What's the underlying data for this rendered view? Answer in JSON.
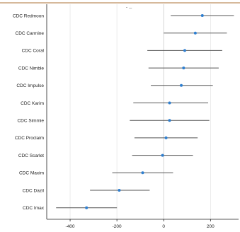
{
  "chart_data": {
    "type": "scatter",
    "subtype": "forest-plot-error-bars",
    "title": "",
    "xlabel": "",
    "ylabel": "",
    "xlim": [
      -500,
      320
    ],
    "x_ticks": [
      -400,
      -200,
      0,
      200
    ],
    "x_tick_labels": [
      "-400",
      "-200",
      "0",
      "200"
    ],
    "grid": true,
    "reference_line_x": 0,
    "categories": [
      "CDC Redmoon",
      "CDC Carmine",
      "CDC Coral",
      "CDC Nimble",
      "CDC Impulse",
      "CDC Karim",
      "CDC Simmie",
      "CDC Proclaim",
      "CDC Scarlet",
      "CDC Maxim",
      "CDC Dazil",
      "CDC Imax"
    ],
    "series": [
      {
        "points": [
          {
            "category": "CDC Redmoon",
            "estimate": 165,
            "low": 30,
            "high": 300
          },
          {
            "category": "CDC Carmine",
            "estimate": 135,
            "low": 0,
            "high": 270
          },
          {
            "category": "CDC Coral",
            "estimate": 90,
            "low": -70,
            "high": 250
          },
          {
            "category": "CDC Nimble",
            "estimate": 85,
            "low": -65,
            "high": 235
          },
          {
            "category": "CDC Impulse",
            "estimate": 75,
            "low": -55,
            "high": 210
          },
          {
            "category": "CDC Karim",
            "estimate": 25,
            "low": -130,
            "high": 190
          },
          {
            "category": "CDC Simmie",
            "estimate": 25,
            "low": -145,
            "high": 195
          },
          {
            "category": "CDC Proclaim",
            "estimate": 10,
            "low": -125,
            "high": 145
          },
          {
            "category": "CDC Scarlet",
            "estimate": -5,
            "low": -135,
            "high": 125
          },
          {
            "category": "CDC Maxim",
            "estimate": -90,
            "low": -220,
            "high": 40
          },
          {
            "category": "CDC Dazil",
            "estimate": -190,
            "low": -315,
            "high": -60
          },
          {
            "category": "CDC Imax",
            "estimate": -330,
            "low": -460,
            "high": -200
          }
        ]
      }
    ],
    "colors": {
      "point": "#2f7fd0",
      "interval": "#555555",
      "grid": "#e6e6e6",
      "frame": "#222222",
      "top_border": "#c9a27a"
    }
  },
  "fragment_text": "-  ..."
}
